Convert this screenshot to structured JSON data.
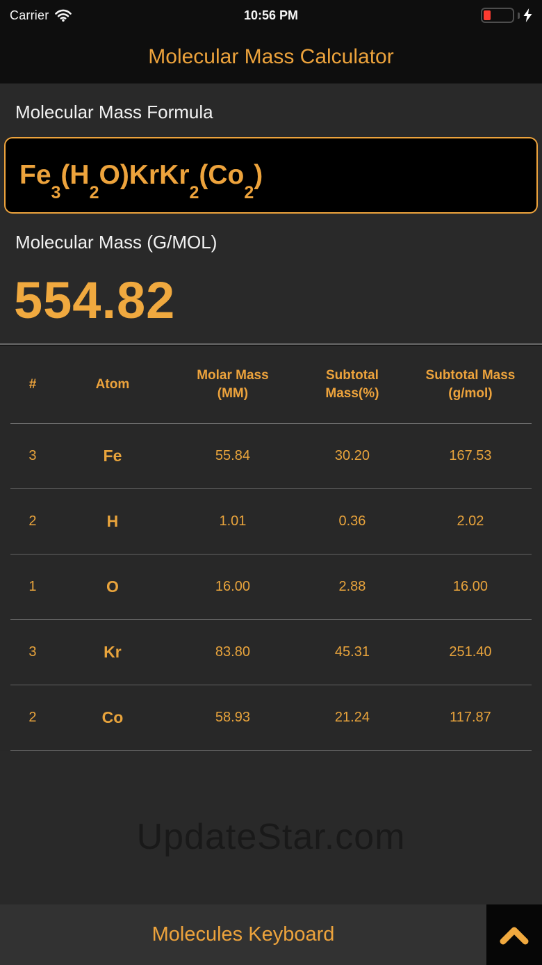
{
  "status_bar": {
    "carrier": "Carrier",
    "time": "10:56 PM"
  },
  "header": {
    "title": "Molecular Mass Calculator"
  },
  "formula_section": {
    "label": "Molecular Mass Formula",
    "formula_plain": "Fe3(H2O)KrKr2(Co2)",
    "formula_segments": [
      {
        "text": "Fe"
      },
      {
        "sub": "3"
      },
      {
        "text": "(H"
      },
      {
        "sub": "2"
      },
      {
        "text": "O)KrKr"
      },
      {
        "sub": "2"
      },
      {
        "text": "(Co"
      },
      {
        "sub": "2"
      },
      {
        "text": ")"
      }
    ]
  },
  "result_section": {
    "label": "Molecular Mass (G/MOL)",
    "value": "554.82"
  },
  "table": {
    "columns": [
      "#",
      "Atom",
      "Molar Mass\n(MM)",
      "Subtotal\nMass(%)",
      "Subtotal Mass\n(g/mol)"
    ],
    "rows": [
      {
        "count": "3",
        "atom": "Fe",
        "molar_mass": "55.84",
        "subtotal_pct": "30.20",
        "subtotal_mass": "167.53"
      },
      {
        "count": "2",
        "atom": "H",
        "molar_mass": "1.01",
        "subtotal_pct": "0.36",
        "subtotal_mass": "2.02"
      },
      {
        "count": "1",
        "atom": "O",
        "molar_mass": "16.00",
        "subtotal_pct": "2.88",
        "subtotal_mass": "16.00"
      },
      {
        "count": "3",
        "atom": "Kr",
        "molar_mass": "83.80",
        "subtotal_pct": "45.31",
        "subtotal_mass": "251.40"
      },
      {
        "count": "2",
        "atom": "Co",
        "molar_mass": "58.93",
        "subtotal_pct": "21.24",
        "subtotal_mass": "117.87"
      }
    ]
  },
  "watermark": "UpdateStar.com",
  "bottom_bar": {
    "label": "Molecules Keyboard"
  },
  "colors": {
    "accent": "#EDA33C",
    "result_value": "#F0A93F",
    "battery_low": "#FF3B30",
    "background": "#292929",
    "header_background": "#0E0E0E",
    "input_background": "#000000",
    "bottom_bar_background": "#323232"
  }
}
